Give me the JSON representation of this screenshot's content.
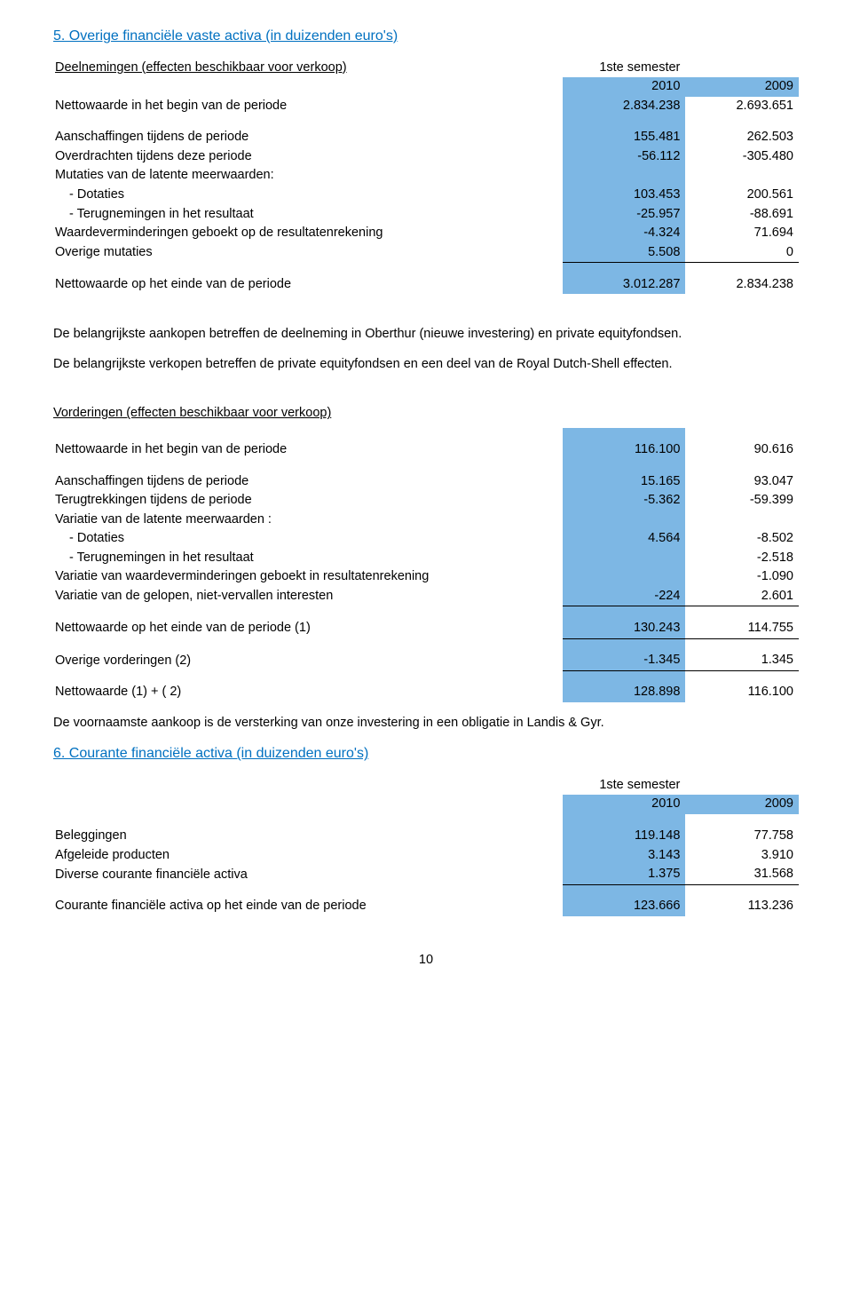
{
  "section5": {
    "title": "5. Overige financiële vaste activa (in duizenden euro's)",
    "sub1_title": "Deelnemingen (effecten beschikbaar voor verkoop)",
    "semester_label": "1ste semester",
    "year_a": "2010",
    "year_b": "2009",
    "rows": {
      "r1": {
        "label": "Nettowaarde in het begin van de periode",
        "a": "2.834.238",
        "b": "2.693.651"
      },
      "r2": {
        "label": "Aanschaffingen tijdens de periode",
        "a": "155.481",
        "b": "262.503"
      },
      "r3": {
        "label": "Overdrachten tijdens deze periode",
        "a": "-56.112",
        "b": "-305.480"
      },
      "r4_hdr": "Mutaties van de latente meerwaarden:",
      "r4a": {
        "label": "- Dotaties",
        "a": "103.453",
        "b": "200.561"
      },
      "r4b": {
        "label": "- Terugnemingen in het resultaat",
        "a": "-25.957",
        "b": "-88.691"
      },
      "r5": {
        "label": "Waardeverminderingen geboekt op de resultatenrekening",
        "a": "-4.324",
        "b": "71.694"
      },
      "r6": {
        "label": "Overige mutaties",
        "a": "5.508",
        "b": "0"
      },
      "r7": {
        "label": "Nettowaarde op het einde van de periode",
        "a": "3.012.287",
        "b": "2.834.238"
      }
    },
    "para1": "De belangrijkste aankopen betreffen de deelneming in Oberthur (nieuwe investering) en private equityfondsen.",
    "para2": "De belangrijkste verkopen betreffen de private equityfondsen en een deel van de Royal Dutch-Shell effecten.",
    "sub2_title": "Vorderingen (effecten beschikbaar voor verkoop)",
    "rows2": {
      "r1": {
        "label": "Nettowaarde in het begin van de periode",
        "a": "116.100",
        "b": "90.616"
      },
      "r2": {
        "label": "Aanschaffingen tijdens de periode",
        "a": "15.165",
        "b": "93.047"
      },
      "r3": {
        "label": "Terugtrekkingen tijdens de periode",
        "a": "-5.362",
        "b": "-59.399"
      },
      "r4_hdr": "Variatie van de latente meerwaarden :",
      "r4a": {
        "label": "- Dotaties",
        "a": "4.564",
        "b": "-8.502"
      },
      "r4b": {
        "label": "- Terugnemingen in het resultaat",
        "a": "",
        "b": "-2.518"
      },
      "r5": {
        "label": "Variatie van waardeverminderingen geboekt in resultatenrekening",
        "a": "",
        "b": "-1.090"
      },
      "r6": {
        "label": "Variatie van de gelopen, niet-vervallen interesten",
        "a": "-224",
        "b": "2.601"
      },
      "r7": {
        "label": "Nettowaarde op het einde van de periode (1)",
        "a": "130.243",
        "b": "114.755"
      },
      "r8": {
        "label": "Overige vorderingen (2)",
        "a": "-1.345",
        "b": "1.345"
      },
      "r9": {
        "label": "Nettowaarde (1) + ( 2)",
        "a": "128.898",
        "b": "116.100"
      }
    },
    "para3": "De voornaamste aankoop is de versterking van onze investering in een obligatie in Landis & Gyr."
  },
  "section6": {
    "title": "6. Courante financiële activa (in duizenden euro's)",
    "semester_label": "1ste semester",
    "year_a": "2010",
    "year_b": "2009",
    "rows": {
      "r1": {
        "label": "Beleggingen",
        "a": "119.148",
        "b": "77.758"
      },
      "r2": {
        "label": "Afgeleide producten",
        "a": "3.143",
        "b": "3.910"
      },
      "r3": {
        "label": "Diverse courante financiële activa",
        "a": "1.375",
        "b": "31.568"
      },
      "r4": {
        "label": "Courante financiële activa op het einde van de periode",
        "a": "123.666",
        "b": "113.236"
      }
    }
  },
  "colors": {
    "heading": "#0070c0",
    "highlight": "#7db7e4",
    "text": "#000000",
    "background": "#ffffff"
  },
  "page_number": "10"
}
